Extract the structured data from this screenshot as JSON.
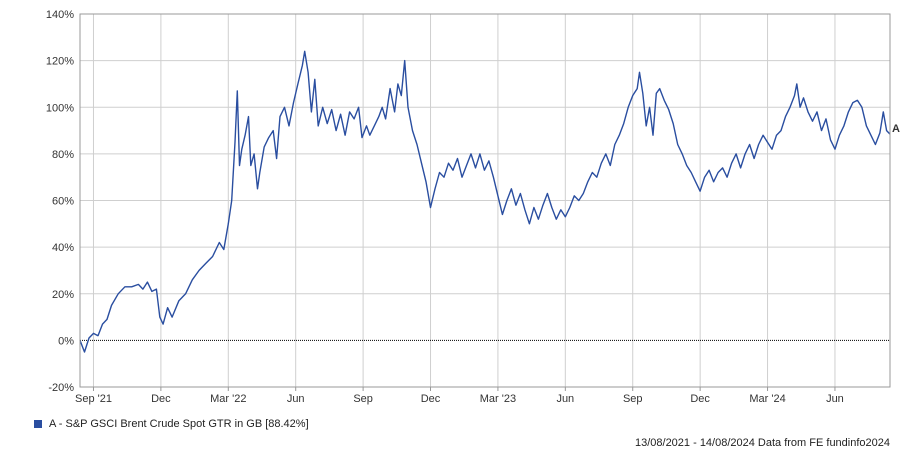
{
  "chart_data": {
    "type": "line",
    "y_ticks": [
      "-20%",
      "0%",
      "20%",
      "40%",
      "60%",
      "80%",
      "100%",
      "120%",
      "140%"
    ],
    "y_tick_values": [
      -20,
      0,
      20,
      40,
      60,
      80,
      100,
      120,
      140
    ],
    "ylim": [
      -20,
      140
    ],
    "x_ticks": [
      {
        "label": "Sep '21",
        "month": 0.6
      },
      {
        "label": "Dec",
        "month": 3.6
      },
      {
        "label": "Mar '22",
        "month": 6.6
      },
      {
        "label": "Jun",
        "month": 9.6
      },
      {
        "label": "Sep",
        "month": 12.6
      },
      {
        "label": "Dec",
        "month": 15.6
      },
      {
        "label": "Mar '23",
        "month": 18.6
      },
      {
        "label": "Jun",
        "month": 21.6
      },
      {
        "label": "Sep",
        "month": 24.6
      },
      {
        "label": "Dec",
        "month": 27.6
      },
      {
        "label": "Mar '24",
        "month": 30.6
      },
      {
        "label": "Jun",
        "month": 33.6
      }
    ],
    "xlim": [
      0,
      36.05
    ],
    "grid": true,
    "zero_line": "dotted",
    "series": [
      {
        "name": "A - S&P GSCI Brent Crude Spot GTR in GB [88.42%]",
        "marker_label": "A",
        "color": "#2a4ea0",
        "points": [
          [
            0,
            0
          ],
          [
            0.2,
            -5
          ],
          [
            0.4,
            1
          ],
          [
            0.6,
            3
          ],
          [
            0.8,
            2
          ],
          [
            1.0,
            7
          ],
          [
            1.2,
            9
          ],
          [
            1.4,
            15
          ],
          [
            1.7,
            20
          ],
          [
            2.0,
            23
          ],
          [
            2.3,
            23
          ],
          [
            2.6,
            24
          ],
          [
            2.8,
            22
          ],
          [
            3.0,
            25
          ],
          [
            3.2,
            21
          ],
          [
            3.4,
            22
          ],
          [
            3.55,
            10
          ],
          [
            3.7,
            7
          ],
          [
            3.9,
            14
          ],
          [
            4.1,
            10
          ],
          [
            4.4,
            17
          ],
          [
            4.7,
            20
          ],
          [
            5.0,
            26
          ],
          [
            5.3,
            30
          ],
          [
            5.6,
            33
          ],
          [
            5.9,
            36
          ],
          [
            6.2,
            42
          ],
          [
            6.4,
            39
          ],
          [
            6.6,
            50
          ],
          [
            6.75,
            60
          ],
          [
            6.9,
            85
          ],
          [
            7.0,
            107
          ],
          [
            7.1,
            75
          ],
          [
            7.2,
            82
          ],
          [
            7.35,
            88
          ],
          [
            7.5,
            96
          ],
          [
            7.6,
            75
          ],
          [
            7.75,
            80
          ],
          [
            7.9,
            65
          ],
          [
            8.0,
            72
          ],
          [
            8.2,
            83
          ],
          [
            8.4,
            87
          ],
          [
            8.6,
            90
          ],
          [
            8.75,
            78
          ],
          [
            8.9,
            96
          ],
          [
            9.1,
            100
          ],
          [
            9.3,
            92
          ],
          [
            9.5,
            102
          ],
          [
            9.7,
            110
          ],
          [
            9.9,
            118
          ],
          [
            10.0,
            124
          ],
          [
            10.15,
            115
          ],
          [
            10.3,
            98
          ],
          [
            10.45,
            112
          ],
          [
            10.6,
            92
          ],
          [
            10.8,
            100
          ],
          [
            11.0,
            93
          ],
          [
            11.2,
            99
          ],
          [
            11.4,
            90
          ],
          [
            11.6,
            97
          ],
          [
            11.8,
            88
          ],
          [
            12.0,
            98
          ],
          [
            12.2,
            95
          ],
          [
            12.4,
            100
          ],
          [
            12.55,
            87
          ],
          [
            12.75,
            92
          ],
          [
            12.9,
            88
          ],
          [
            13.1,
            92
          ],
          [
            13.3,
            96
          ],
          [
            13.45,
            100
          ],
          [
            13.6,
            95
          ],
          [
            13.8,
            108
          ],
          [
            14.0,
            98
          ],
          [
            14.15,
            110
          ],
          [
            14.3,
            105
          ],
          [
            14.45,
            120
          ],
          [
            14.6,
            100
          ],
          [
            14.8,
            90
          ],
          [
            15.0,
            84
          ],
          [
            15.2,
            76
          ],
          [
            15.4,
            68
          ],
          [
            15.6,
            57
          ],
          [
            15.8,
            65
          ],
          [
            16.0,
            72
          ],
          [
            16.2,
            70
          ],
          [
            16.4,
            76
          ],
          [
            16.6,
            73
          ],
          [
            16.8,
            78
          ],
          [
            17.0,
            70
          ],
          [
            17.2,
            75
          ],
          [
            17.4,
            80
          ],
          [
            17.6,
            74
          ],
          [
            17.8,
            80
          ],
          [
            18.0,
            73
          ],
          [
            18.2,
            77
          ],
          [
            18.4,
            70
          ],
          [
            18.6,
            62
          ],
          [
            18.8,
            54
          ],
          [
            19.0,
            60
          ],
          [
            19.2,
            65
          ],
          [
            19.4,
            58
          ],
          [
            19.6,
            63
          ],
          [
            19.8,
            56
          ],
          [
            20.0,
            50
          ],
          [
            20.2,
            57
          ],
          [
            20.4,
            52
          ],
          [
            20.6,
            58
          ],
          [
            20.8,
            63
          ],
          [
            21.0,
            57
          ],
          [
            21.2,
            52
          ],
          [
            21.4,
            56
          ],
          [
            21.6,
            53
          ],
          [
            21.8,
            57
          ],
          [
            22.0,
            62
          ],
          [
            22.2,
            60
          ],
          [
            22.4,
            63
          ],
          [
            22.6,
            68
          ],
          [
            22.8,
            72
          ],
          [
            23.0,
            70
          ],
          [
            23.2,
            76
          ],
          [
            23.4,
            80
          ],
          [
            23.6,
            75
          ],
          [
            23.8,
            84
          ],
          [
            24.0,
            88
          ],
          [
            24.2,
            93
          ],
          [
            24.4,
            100
          ],
          [
            24.6,
            105
          ],
          [
            24.8,
            108
          ],
          [
            24.9,
            115
          ],
          [
            25.05,
            106
          ],
          [
            25.2,
            92
          ],
          [
            25.35,
            100
          ],
          [
            25.5,
            88
          ],
          [
            25.65,
            106
          ],
          [
            25.8,
            108
          ],
          [
            26.0,
            103
          ],
          [
            26.2,
            99
          ],
          [
            26.4,
            93
          ],
          [
            26.6,
            84
          ],
          [
            26.8,
            80
          ],
          [
            27.0,
            75
          ],
          [
            27.2,
            72
          ],
          [
            27.4,
            68
          ],
          [
            27.6,
            64
          ],
          [
            27.8,
            70
          ],
          [
            28.0,
            73
          ],
          [
            28.2,
            68
          ],
          [
            28.4,
            72
          ],
          [
            28.6,
            74
          ],
          [
            28.8,
            70
          ],
          [
            29.0,
            76
          ],
          [
            29.2,
            80
          ],
          [
            29.4,
            74
          ],
          [
            29.6,
            80
          ],
          [
            29.8,
            84
          ],
          [
            30.0,
            78
          ],
          [
            30.2,
            84
          ],
          [
            30.4,
            88
          ],
          [
            30.6,
            85
          ],
          [
            30.8,
            82
          ],
          [
            31.0,
            88
          ],
          [
            31.2,
            90
          ],
          [
            31.4,
            96
          ],
          [
            31.6,
            100
          ],
          [
            31.8,
            105
          ],
          [
            31.9,
            110
          ],
          [
            32.05,
            100
          ],
          [
            32.2,
            104
          ],
          [
            32.4,
            98
          ],
          [
            32.6,
            94
          ],
          [
            32.8,
            98
          ],
          [
            33.0,
            90
          ],
          [
            33.2,
            95
          ],
          [
            33.4,
            86
          ],
          [
            33.6,
            82
          ],
          [
            33.8,
            88
          ],
          [
            34.0,
            92
          ],
          [
            34.2,
            98
          ],
          [
            34.4,
            102
          ],
          [
            34.6,
            103
          ],
          [
            34.8,
            100
          ],
          [
            35.0,
            92
          ],
          [
            35.2,
            88
          ],
          [
            35.4,
            84
          ],
          [
            35.6,
            89
          ],
          [
            35.75,
            98
          ],
          [
            35.9,
            90
          ],
          [
            36.05,
            88.42
          ]
        ]
      }
    ]
  },
  "legend": {
    "label": "A - S&P GSCI Brent Crude Spot GTR in GB [88.42%]",
    "color": "#2a4ea0"
  },
  "footer": {
    "text": "13/08/2021 - 14/08/2024 Data from FE fundinfo2024"
  },
  "colors": {
    "grid": "#cfcfcf",
    "axis": "#999999",
    "line": "#2a4ea0"
  }
}
